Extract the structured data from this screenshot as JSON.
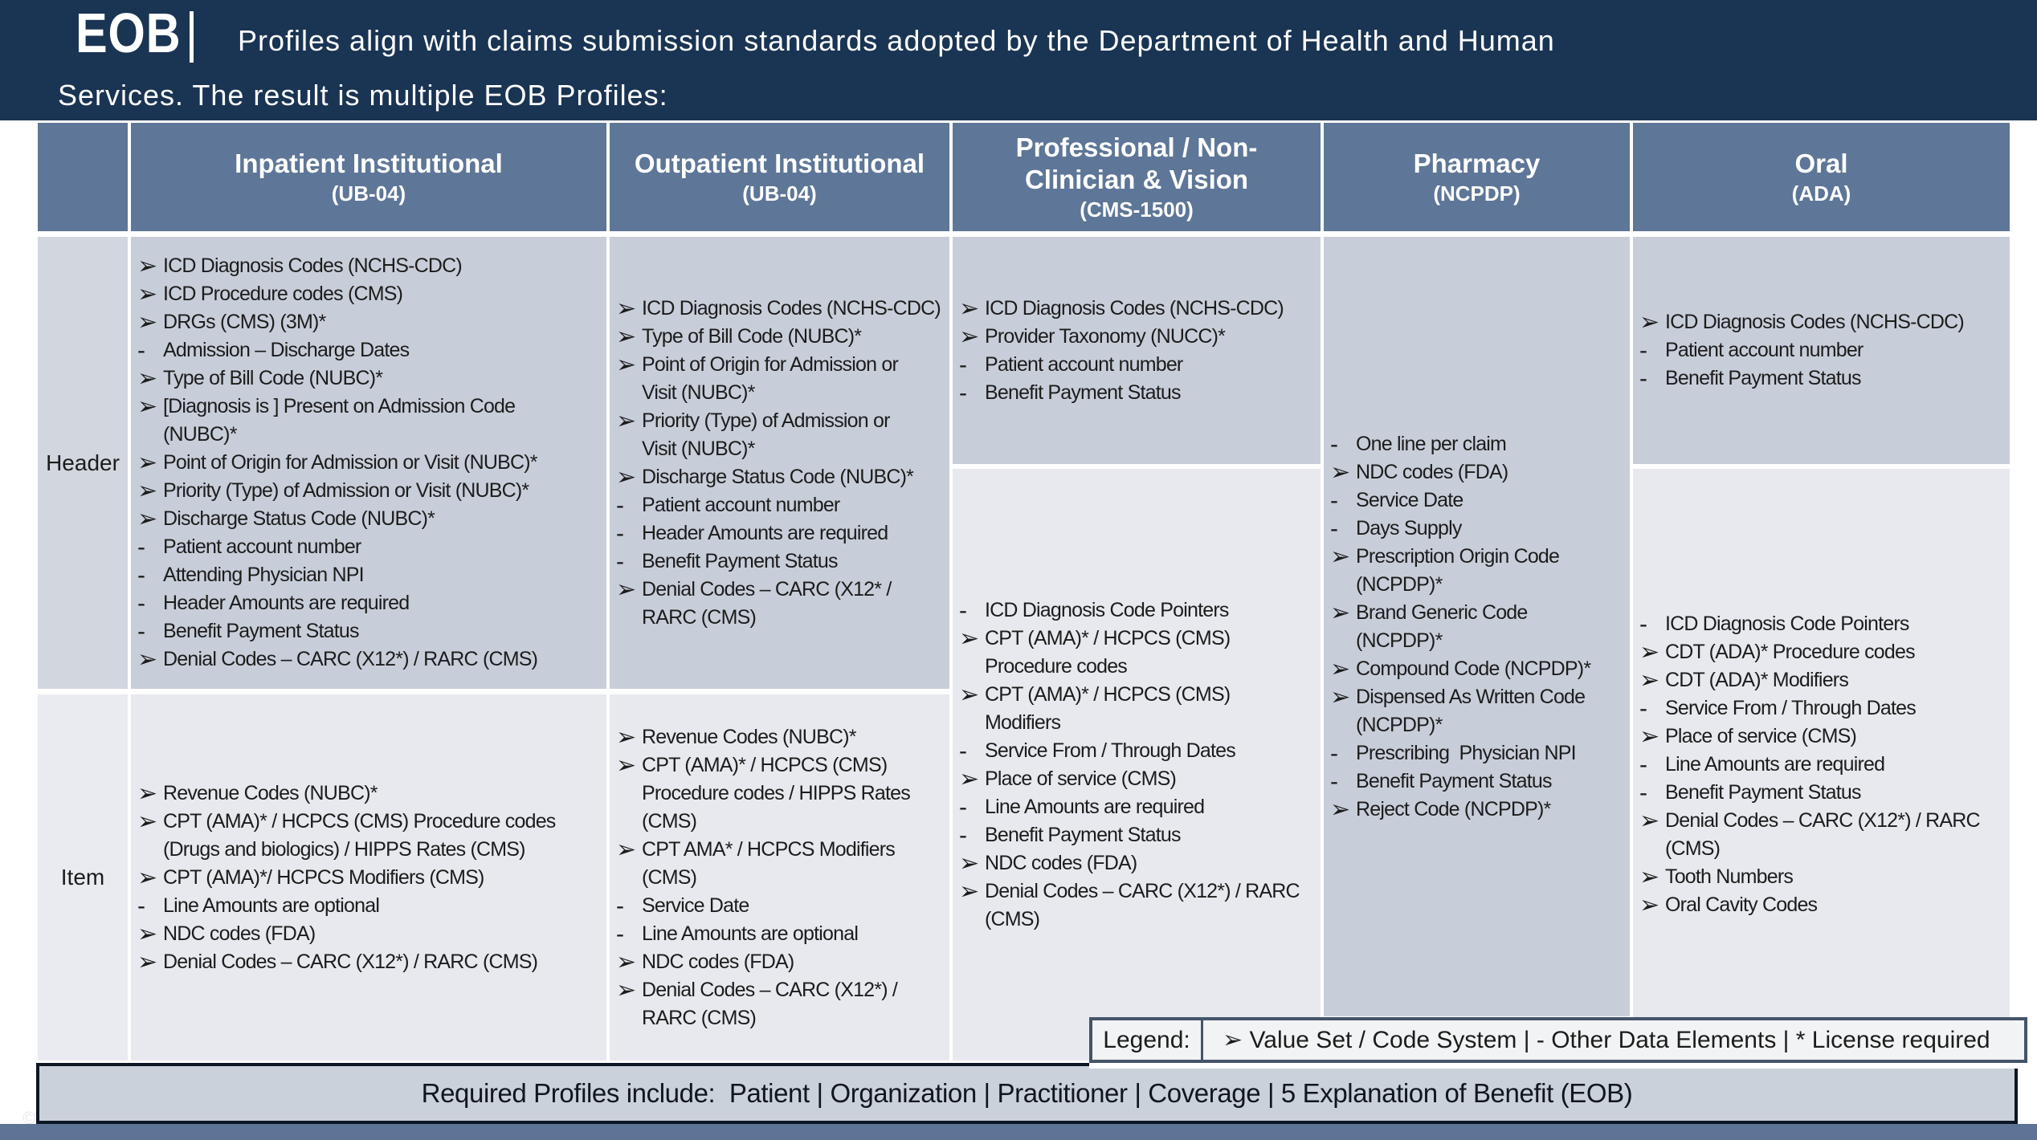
{
  "banner": {
    "brand": "EOB",
    "divider": "|",
    "line1": "Profiles align with claims submission standards adopted by the Department of Health and Human",
    "line2": "Services. The result is multiple EOB Profiles:"
  },
  "row_labels": {
    "header": "Header",
    "item": "Item"
  },
  "bullets": {
    "a": "➢",
    "d": "-"
  },
  "columns": [
    {
      "id": "inpatient",
      "title": "Inpatient Institutional",
      "subtitle": "(UB-04)",
      "cells": [
        {
          "name": "header",
          "items": [
            {
              "b": "a",
              "t": "ICD Diagnosis Codes (NCHS-CDC)"
            },
            {
              "b": "a",
              "t": "ICD Procedure codes (CMS)"
            },
            {
              "b": "a",
              "t": "DRGs (CMS) (3M)*"
            },
            {
              "b": "d",
              "t": "Admission – Discharge Dates"
            },
            {
              "b": "a",
              "t": "Type of Bill Code (NUBC)*"
            },
            {
              "b": "a",
              "t": "[Diagnosis is ] Present on Admission Code\n(NUBC)*"
            },
            {
              "b": "a",
              "t": "Point of Origin for Admission or Visit (NUBC)*"
            },
            {
              "b": "a",
              "t": "Priority (Type) of Admission or Visit (NUBC)*"
            },
            {
              "b": "a",
              "t": "Discharge Status Code (NUBC)*"
            },
            {
              "b": "d",
              "t": "Patient account number"
            },
            {
              "b": "d",
              "t": "Attending Physician NPI"
            },
            {
              "b": "d",
              "t": "Header Amounts are required"
            },
            {
              "b": "d",
              "t": "Benefit Payment Status"
            },
            {
              "b": "a",
              "t": "Denial Codes – CARC (X12*) / RARC (CMS)"
            }
          ]
        },
        {
          "name": "item",
          "items": [
            {
              "b": "a",
              "t": "Revenue Codes (NUBC)*"
            },
            {
              "b": "a",
              "t": "CPT (AMA)* / HCPCS (CMS) Procedure codes\n(Drugs and biologics) / HIPPS Rates (CMS)"
            },
            {
              "b": "a",
              "t": "CPT (AMA)*/ HCPCS Modifiers (CMS)"
            },
            {
              "b": "d",
              "t": "Line Amounts are optional"
            },
            {
              "b": "a",
              "t": "NDC codes (FDA)"
            },
            {
              "b": "a",
              "t": "Denial Codes – CARC (X12*) / RARC (CMS)"
            }
          ]
        }
      ]
    },
    {
      "id": "outpatient",
      "title": "Outpatient Institutional",
      "subtitle": "(UB-04)",
      "cells": [
        {
          "name": "header",
          "items": [
            {
              "b": "a",
              "t": "ICD Diagnosis Codes (NCHS-CDC)"
            },
            {
              "b": "a",
              "t": "Type of Bill Code (NUBC)*"
            },
            {
              "b": "a",
              "t": "Point of Origin for Admission or\nVisit (NUBC)*"
            },
            {
              "b": "a",
              "t": "Priority (Type) of Admission or\nVisit (NUBC)*"
            },
            {
              "b": "a",
              "t": "Discharge Status Code (NUBC)*"
            },
            {
              "b": "d",
              "t": "Patient account number"
            },
            {
              "b": "d",
              "t": "Header Amounts are required"
            },
            {
              "b": "d",
              "t": "Benefit Payment Status"
            },
            {
              "b": "a",
              "t": "Denial Codes – CARC (X12* /\nRARC (CMS)"
            }
          ]
        },
        {
          "name": "item",
          "items": [
            {
              "b": "a",
              "t": "Revenue Codes (NUBC)*"
            },
            {
              "b": "a",
              "t": "CPT (AMA)* / HCPCS (CMS)\nProcedure codes / HIPPS Rates\n(CMS)"
            },
            {
              "b": "a",
              "t": "CPT AMA* / HCPCS Modifiers\n(CMS)"
            },
            {
              "b": "d",
              "t": "Service Date"
            },
            {
              "b": "d",
              "t": "Line Amounts are optional"
            },
            {
              "b": "a",
              "t": "NDC codes (FDA)"
            },
            {
              "b": "a",
              "t": "Denial Codes – CARC (X12*) /\nRARC (CMS)"
            }
          ]
        }
      ]
    },
    {
      "id": "professional",
      "title": "Professional / Non-\nClinician & Vision",
      "subtitle": "(CMS-1500)",
      "cells": [
        {
          "name": "header",
          "items": [
            {
              "b": "a",
              "t": "ICD Diagnosis Codes (NCHS-CDC)"
            },
            {
              "b": "a",
              "t": "Provider Taxonomy (NUCC)*"
            },
            {
              "b": "d",
              "t": "Patient account number"
            },
            {
              "b": "d",
              "t": "Benefit Payment Status"
            }
          ]
        },
        {
          "name": "item",
          "items": [
            {
              "b": "d",
              "t": "ICD Diagnosis Code Pointers"
            },
            {
              "b": "a",
              "t": "CPT (AMA)* / HCPCS (CMS)\nProcedure codes"
            },
            {
              "b": "a",
              "t": "CPT (AMA)* / HCPCS (CMS)\nModifiers"
            },
            {
              "b": "d",
              "t": "Service From / Through Dates"
            },
            {
              "b": "a",
              "t": "Place of service (CMS)"
            },
            {
              "b": "d",
              "t": "Line Amounts are required"
            },
            {
              "b": "d",
              "t": "Benefit Payment Status"
            },
            {
              "b": "a",
              "t": "NDC codes (FDA)"
            },
            {
              "b": "a",
              "t": "Denial Codes – CARC (X12*) / RARC\n(CMS)"
            }
          ]
        }
      ]
    },
    {
      "id": "pharmacy",
      "title": "Pharmacy",
      "subtitle": "(NCPDP)",
      "cells": [
        {
          "name": "merged",
          "items": [
            {
              "b": "d",
              "t": "One line per claim"
            },
            {
              "b": "a",
              "t": "NDC codes (FDA)"
            },
            {
              "b": "d",
              "t": "Service Date"
            },
            {
              "b": "d",
              "t": "Days Supply"
            },
            {
              "b": "a",
              "t": "Prescription Origin Code\n(NCPDP)*"
            },
            {
              "b": "a",
              "t": "Brand Generic Code\n(NCPDP)*"
            },
            {
              "b": "a",
              "t": "Compound Code (NCPDP)*"
            },
            {
              "b": "a",
              "t": "Dispensed As Written Code\n(NCPDP)*"
            },
            {
              "b": "d",
              "t": "Prescribing  Physician NPI"
            },
            {
              "b": "d",
              "t": "Benefit Payment Status"
            },
            {
              "b": "a",
              "t": "Reject Code (NCPDP)*"
            }
          ]
        }
      ]
    },
    {
      "id": "oral",
      "title": "Oral",
      "subtitle": "(ADA)",
      "cells": [
        {
          "name": "header",
          "items": [
            {
              "b": "a",
              "t": "ICD Diagnosis Codes (NCHS-CDC)"
            },
            {
              "b": "d",
              "t": "Patient account number"
            },
            {
              "b": "d",
              "t": "Benefit Payment Status"
            }
          ]
        },
        {
          "name": "item",
          "items": [
            {
              "b": "d",
              "t": "ICD Diagnosis Code Pointers"
            },
            {
              "b": "a",
              "t": "CDT (ADA)* Procedure codes"
            },
            {
              "b": "a",
              "t": "CDT (ADA)* Modifiers"
            },
            {
              "b": "d",
              "t": "Service From / Through Dates"
            },
            {
              "b": "a",
              "t": "Place of service (CMS)"
            },
            {
              "b": "d",
              "t": "Line Amounts are required"
            },
            {
              "b": "d",
              "t": "Benefit Payment Status"
            },
            {
              "b": "a",
              "t": "Denial Codes – CARC (X12*) / RARC\n(CMS)"
            },
            {
              "b": "a",
              "t": "Tooth Numbers"
            },
            {
              "b": "a",
              "t": "Oral Cavity Codes"
            }
          ]
        }
      ]
    }
  ],
  "legend": {
    "label": "Legend:",
    "text": "➢ Value Set / Code System | - Other Data Elements | * License required"
  },
  "footer": {
    "text": "Required Profiles include:  Patient | Organization | Practitioner | Coverage | 5 Explanation of Benefit (EOB)"
  },
  "copyright": "©"
}
